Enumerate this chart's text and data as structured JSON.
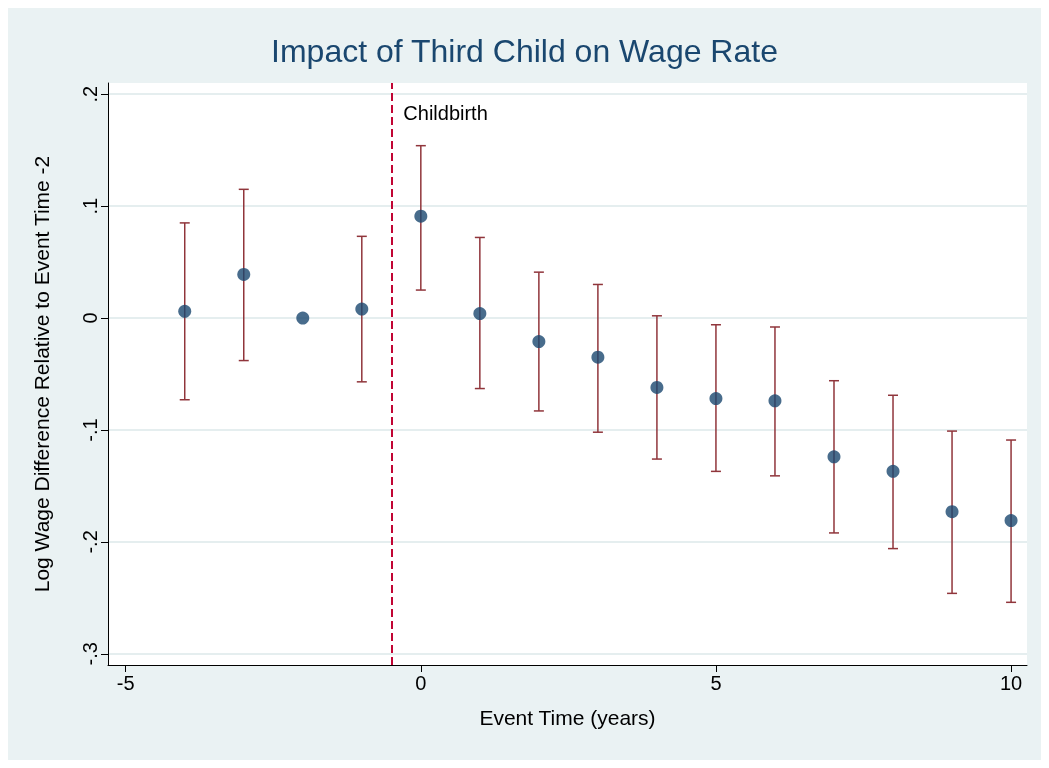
{
  "chart_data": {
    "type": "scatter",
    "title": "Impact of Third Child on Wage Rate",
    "xlabel": "Event Time (years)",
    "ylabel": "Log Wage Difference Relative to Event Time -2",
    "x": [
      -4,
      -3,
      -2,
      -1,
      0,
      1,
      2,
      3,
      4,
      5,
      6,
      7,
      8,
      9,
      10
    ],
    "values": [
      0.006,
      0.039,
      0,
      0.008,
      0.091,
      0.004,
      -0.021,
      -0.035,
      -0.062,
      -0.072,
      -0.074,
      -0.124,
      -0.137,
      -0.173,
      -0.181
    ],
    "errors": [
      [
        -0.073,
        0.085
      ],
      [
        -0.038,
        0.115
      ],
      null,
      [
        -0.057,
        0.073
      ],
      [
        0.025,
        0.154
      ],
      [
        -0.063,
        0.072
      ],
      [
        -0.083,
        0.041
      ],
      [
        -0.102,
        0.03
      ],
      [
        -0.126,
        0.002
      ],
      [
        -0.137,
        -0.006
      ],
      [
        -0.141,
        -0.008
      ],
      [
        -0.192,
        -0.056
      ],
      [
        -0.206,
        -0.069
      ],
      [
        -0.246,
        -0.101
      ],
      [
        -0.254,
        -0.109
      ]
    ],
    "color": "#1a476f",
    "marker": "circle",
    "xlim": [
      -5.3,
      10.27
    ],
    "xticks": [
      -5,
      0,
      5,
      10
    ],
    "ylim": [
      -0.31,
      0.21
    ],
    "yticks": [
      {
        "value": -0.3,
        "label": "-.3"
      },
      {
        "value": -0.2,
        "label": "-.2"
      },
      {
        "value": -0.1,
        "label": "-.1"
      },
      0,
      {
        "value": 0.1,
        "label": ".1"
      },
      {
        "value": 0.2,
        "label": ".2"
      }
    ],
    "grid": "y",
    "ref_lines": [
      {
        "axis": "x",
        "value": -0.5,
        "label": "Childbirth",
        "color": "#c10534",
        "line_style": "dashed"
      }
    ]
  }
}
